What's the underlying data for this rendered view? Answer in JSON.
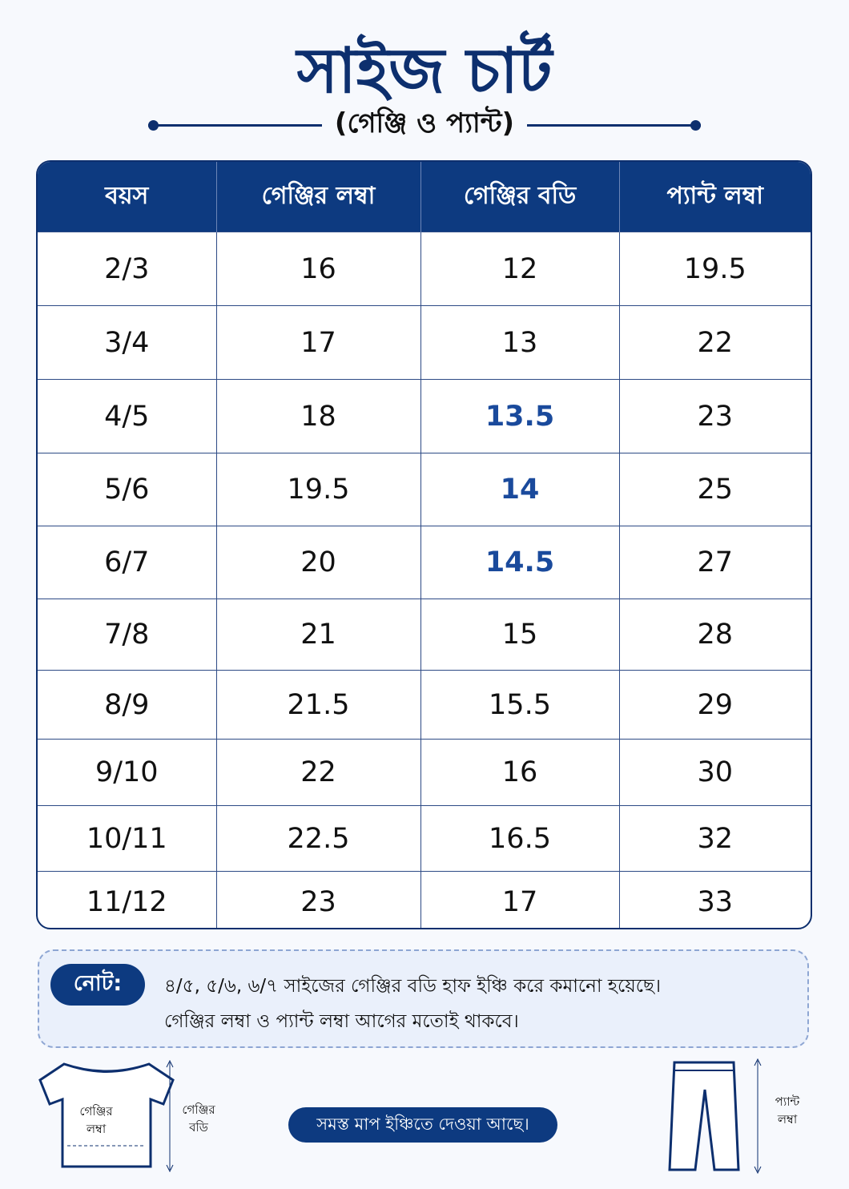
{
  "title": "সাইজ চার্ট",
  "subtitle": "(গেঞ্জি ও প্যান্ট)",
  "table": {
    "headers": [
      "বয়স",
      "গেঞ্জির লম্বা",
      "গেঞ্জির বডি",
      "প্যান্ট লম্বা"
    ],
    "rows": [
      [
        "2/3",
        16,
        12,
        19.5
      ],
      [
        "3/4",
        17,
        13,
        22
      ],
      [
        "4/5",
        18,
        13.5,
        23
      ],
      [
        "5/6",
        19.5,
        14,
        25
      ],
      [
        "6/7",
        20,
        14.5,
        27
      ],
      [
        "7/8",
        21,
        15,
        28
      ],
      [
        "8/9",
        21.5,
        15.5,
        29
      ],
      [
        "9/10",
        22,
        16,
        30
      ],
      [
        "10/11",
        22.5,
        16.5,
        32
      ],
      [
        "11/12",
        23,
        17,
        33
      ]
    ]
  },
  "note": {
    "label": "নোট:",
    "lines": [
      "৪/৫, ৫/৬, ৬/৭ সাইজের গেঞ্জির বডি হাফ ইঞ্চি করে কমানো হয়েছে।",
      "গেঞ্জির লম্বা ও প্যান্ট লম্বা আগের মতোই থাকবে।"
    ]
  },
  "shirt": {
    "inner_label": [
      "গেঞ্জির",
      "লম্বা"
    ],
    "side_label": [
      "গেঞ্জির",
      "বডি"
    ]
  },
  "badge": "সমস্ত মাপ ইঞ্চিতে দেওয়া আছে।",
  "pant": {
    "side_label": [
      "প্যান্ট",
      "লম্বা"
    ]
  }
}
